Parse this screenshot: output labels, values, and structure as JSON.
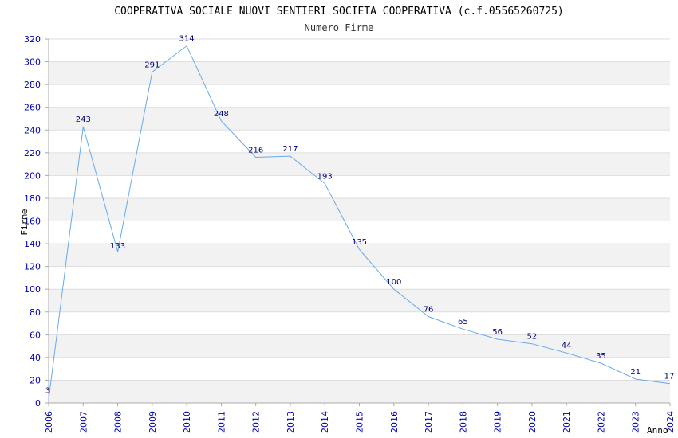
{
  "chart_data": {
    "type": "line",
    "title": "COOPERATIVA SOCIALE NUOVI SENTIERI SOCIETA COOPERATIVA (c.f.05565260725)",
    "subtitle": "Numero Firme",
    "xlabel": "Anno",
    "ylabel": "Firme",
    "ylim": [
      0,
      320
    ],
    "yticks": [
      0,
      20,
      40,
      60,
      80,
      100,
      120,
      140,
      160,
      180,
      200,
      220,
      240,
      260,
      280,
      300,
      320
    ],
    "categories": [
      "2006",
      "2007",
      "2008",
      "2009",
      "2010",
      "2011",
      "2012",
      "2013",
      "2014",
      "2015",
      "2016",
      "2017",
      "2018",
      "2019",
      "2020",
      "2021",
      "2022",
      "2023",
      "2024"
    ],
    "series": [
      {
        "name": "Numero Firme",
        "values": [
          3,
          243,
          133,
          291,
          314,
          248,
          216,
          217,
          193,
          135,
          100,
          76,
          65,
          56,
          52,
          44,
          35,
          21,
          17
        ]
      }
    ],
    "colors": {
      "line": "#64aaee",
      "band": "#f2f2f2",
      "tick_text": "#0000aa",
      "label_text": "#00007f",
      "grid": "#dddddd",
      "axis": "#aaaaaa"
    }
  }
}
